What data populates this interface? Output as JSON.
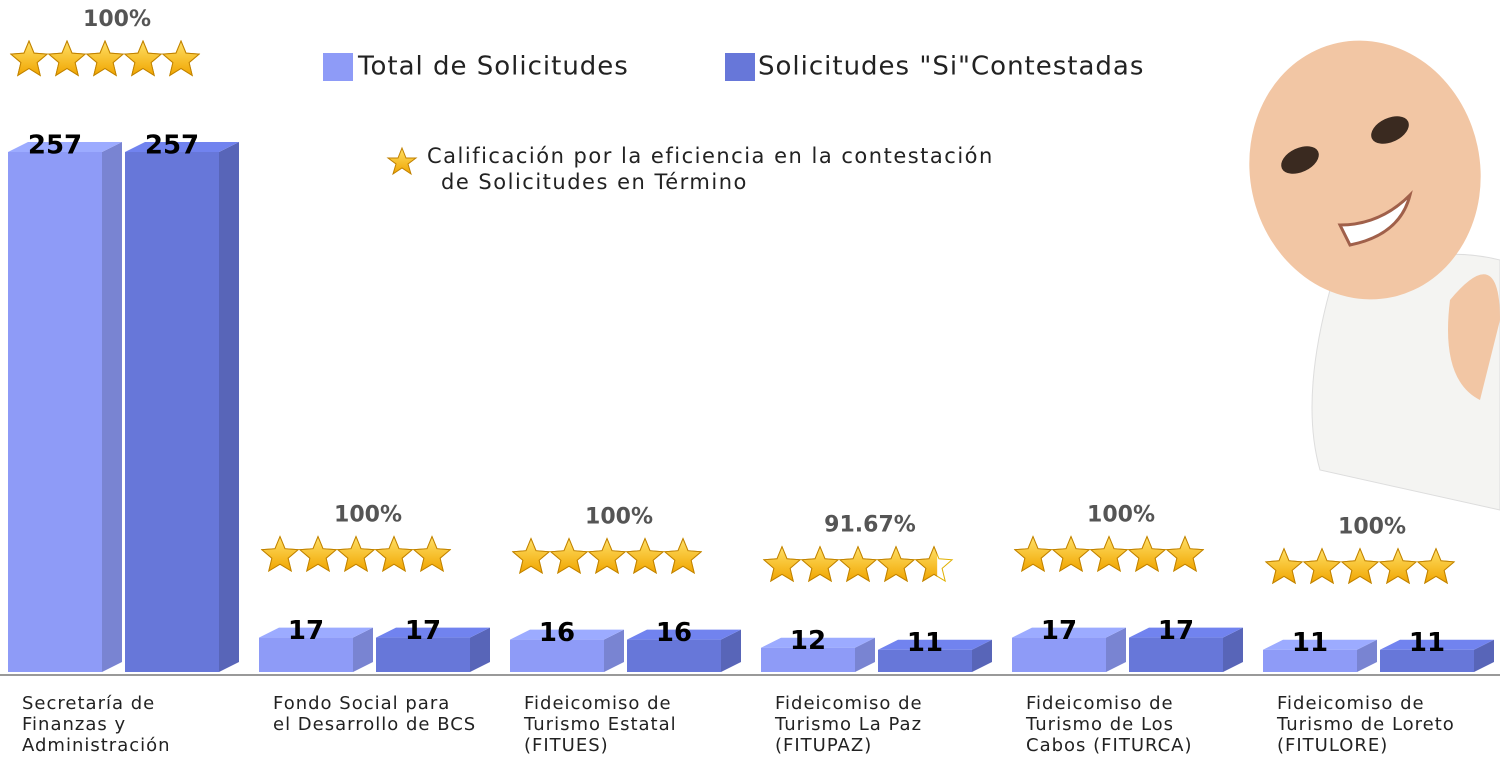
{
  "chart_data": {
    "type": "bar3d",
    "categories": [
      "Secretaría de\nFinanzas y\nAdministración",
      "Fondo Social para\nel Desarrollo de BCS",
      "Fideicomiso de\nTurismo Estatal\n(FITUES)",
      "Fideicomiso de\nTurismo La Paz\n(FITUPAZ)",
      "Fideicomiso de\nTurismo de Los\nCabos (FITURCA)",
      "Fideicomiso de\nTurismo de Loreto\n(FITULORE)"
    ],
    "series": [
      {
        "name": "Total de Solicitudes",
        "color": "#8e9bf7",
        "values": [
          257,
          17,
          16,
          12,
          17,
          11
        ]
      },
      {
        "name": "Solicitudes \"Si\"Contestadas",
        "color": "#6777d9",
        "values": [
          257,
          17,
          16,
          11,
          17,
          11
        ]
      }
    ],
    "ratings": [
      100,
      100,
      100,
      91.67,
      100,
      100
    ],
    "rating_labels": [
      "100%",
      "100%",
      "100%",
      "91.67%",
      "100%",
      "100%"
    ],
    "note": [
      "Calificación por la eficiencia en la contestación",
      "de Solicitudes en Término"
    ]
  }
}
